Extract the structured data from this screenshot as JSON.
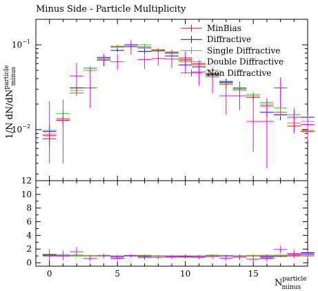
{
  "chart_data": {
    "type": "scatter",
    "title": "Minus Side - Particle Multiplicity",
    "ylabel_main": "1/N dN/dN",
    "ylabel_sup": "particle",
    "ylabel_sub": "minus",
    "xlabel_main": "N",
    "xlabel_sup": "particle",
    "xlabel_sub": "minus",
    "xlim": [
      -1,
      19
    ],
    "ylim_main": [
      0.0025,
      0.2
    ],
    "ylim_ratio": [
      -0.5,
      12
    ],
    "yscale_main": "log",
    "x_ticks": [
      0,
      5,
      10,
      15
    ],
    "y_ticks_main": [
      {
        "value": 0.1,
        "label_base": "10",
        "label_exp": "−1"
      },
      {
        "value": 0.01,
        "label_base": "10",
        "label_exp": "−2"
      }
    ],
    "y_ticks_ratio": [
      0,
      2,
      4,
      6,
      8,
      10,
      12
    ],
    "legend_position": "top-right",
    "series": [
      {
        "name": "MinBias",
        "color": "#e8000b",
        "xoffset": 0.0,
        "values": [
          0.0078,
          0.0128,
          0.027,
          0.05,
          0.066,
          0.096,
          0.095,
          0.092,
          0.087,
          0.082,
          0.07,
          0.06,
          0.045,
          0.036,
          0.031,
          0.024,
          0.019,
          0.016,
          0.011,
          0.0095
        ],
        "errors": [
          0.0015,
          0.0015,
          0.002,
          0.003,
          0.003,
          0.004,
          0.004,
          0.004,
          0.004,
          0.004,
          0.003,
          0.003,
          0.003,
          0.003,
          0.002,
          0.002,
          0.002,
          0.002,
          0.0015,
          0.0015
        ],
        "ratio": [
          1,
          1,
          1,
          1,
          1,
          1,
          1,
          1,
          1,
          1,
          1,
          1,
          1,
          1,
          1,
          1,
          1,
          1,
          1,
          1
        ]
      },
      {
        "name": "Diffractive",
        "color": "#0000ff",
        "xoffset": 0.0,
        "values": [
          0.0095,
          0.013,
          0.031,
          0.053,
          0.071,
          0.086,
          0.1,
          0.084,
          0.085,
          0.074,
          0.058,
          0.055,
          0.044,
          0.037,
          0.03,
          0.025,
          0.016,
          0.015,
          0.014,
          0.014
        ],
        "errors": [
          0.0015,
          0.0015,
          0.002,
          0.003,
          0.003,
          0.004,
          0.004,
          0.004,
          0.004,
          0.004,
          0.003,
          0.003,
          0.003,
          0.003,
          0.002,
          0.002,
          0.002,
          0.002,
          0.0015,
          0.0015
        ],
        "ratio": [
          1.2,
          1.0,
          1.1,
          1.05,
          1.08,
          0.9,
          1.05,
          0.92,
          0.98,
          0.9,
          0.83,
          0.92,
          0.98,
          1.03,
          0.97,
          1.04,
          0.84,
          0.94,
          1.27,
          1.47
        ]
      },
      {
        "name": "Single Diffractive",
        "color": "#2ecc40",
        "xoffset": 0.0,
        "values": [
          0.0098,
          0.0155,
          0.029,
          0.053,
          0.07,
          0.094,
          0.095,
          0.1,
          0.088,
          0.079,
          0.063,
          0.058,
          0.05,
          0.035,
          0.03,
          0.026,
          0.021,
          0.018,
          0.015,
          0.0125
        ],
        "errors": [
          0.0015,
          0.0015,
          0.002,
          0.003,
          0.003,
          0.004,
          0.004,
          0.004,
          0.004,
          0.004,
          0.003,
          0.003,
          0.003,
          0.003,
          0.002,
          0.002,
          0.002,
          0.002,
          0.0015,
          0.0015
        ],
        "ratio": [
          1.25,
          1.2,
          1.07,
          1.06,
          1.06,
          0.98,
          1.0,
          1.09,
          1.01,
          0.96,
          0.9,
          0.97,
          1.11,
          0.97,
          0.97,
          1.08,
          1.1,
          1.12,
          1.36,
          1.31
        ]
      },
      {
        "name": "Double Diffractive",
        "color": "#b8860b",
        "xoffset": 0.0,
        "values": [
          0.0088,
          0.013,
          0.027,
          0.05,
          0.068,
          0.095,
          0.095,
          0.095,
          0.087,
          0.08,
          0.067,
          0.058,
          0.046,
          0.034,
          0.029,
          0.025,
          0.02,
          0.016,
          0.012,
          0.0098
        ],
        "errors": [
          0.0015,
          0.0015,
          0.002,
          0.003,
          0.003,
          0.004,
          0.004,
          0.004,
          0.004,
          0.004,
          0.003,
          0.003,
          0.003,
          0.003,
          0.002,
          0.002,
          0.002,
          0.002,
          0.0015,
          0.0015
        ],
        "ratio": [
          1.13,
          1.02,
          1.0,
          1.0,
          1.03,
          0.99,
          1.0,
          1.03,
          1.0,
          0.98,
          0.96,
          0.97,
          1.02,
          0.94,
          0.94,
          1.04,
          1.05,
          1.0,
          1.09,
          1.03
        ]
      },
      {
        "name": "Non Diffractive",
        "color": "#ee00ee",
        "xoffset": 0.0,
        "values": [
          0.0085,
          0.0135,
          0.043,
          0.031,
          0.066,
          0.063,
          0.096,
          0.067,
          0.069,
          0.068,
          0.066,
          0.048,
          0.042,
          0.025,
          0.025,
          0.0125,
          0.0125,
          0.031,
          0.014,
          0.0115
        ],
        "errors_low": [
          0.0045,
          0.0095,
          0.016,
          0.013,
          0.01,
          0.012,
          0.02,
          0.015,
          0.012,
          0.015,
          0.02,
          0.015,
          0.015,
          0.01,
          0.008,
          0.007,
          0.009,
          0.013,
          0.005,
          0.004
        ],
        "errors_high": [
          0.013,
          0.009,
          0.018,
          0.02,
          0.012,
          0.015,
          0.018,
          0.018,
          0.015,
          0.02,
          0.018,
          0.018,
          0.012,
          0.012,
          0.012,
          0.013,
          0.011,
          0.01,
          0.004,
          0.003
        ],
        "ratio": [
          1.1,
          1.05,
          1.6,
          0.62,
          1.0,
          0.66,
          1.01,
          0.73,
          0.79,
          0.83,
          0.94,
          0.8,
          0.93,
          0.69,
          0.81,
          0.52,
          0.66,
          1.94,
          1.27,
          1.21
        ],
        "ratio_err": [
          0.9,
          0.7,
          0.7,
          0.4,
          0.3,
          0.3,
          0.3,
          0.3,
          0.3,
          0.3,
          0.3,
          0.3,
          0.3,
          0.4,
          0.4,
          0.5,
          0.5,
          0.5,
          0.6,
          0.6
        ]
      }
    ]
  }
}
